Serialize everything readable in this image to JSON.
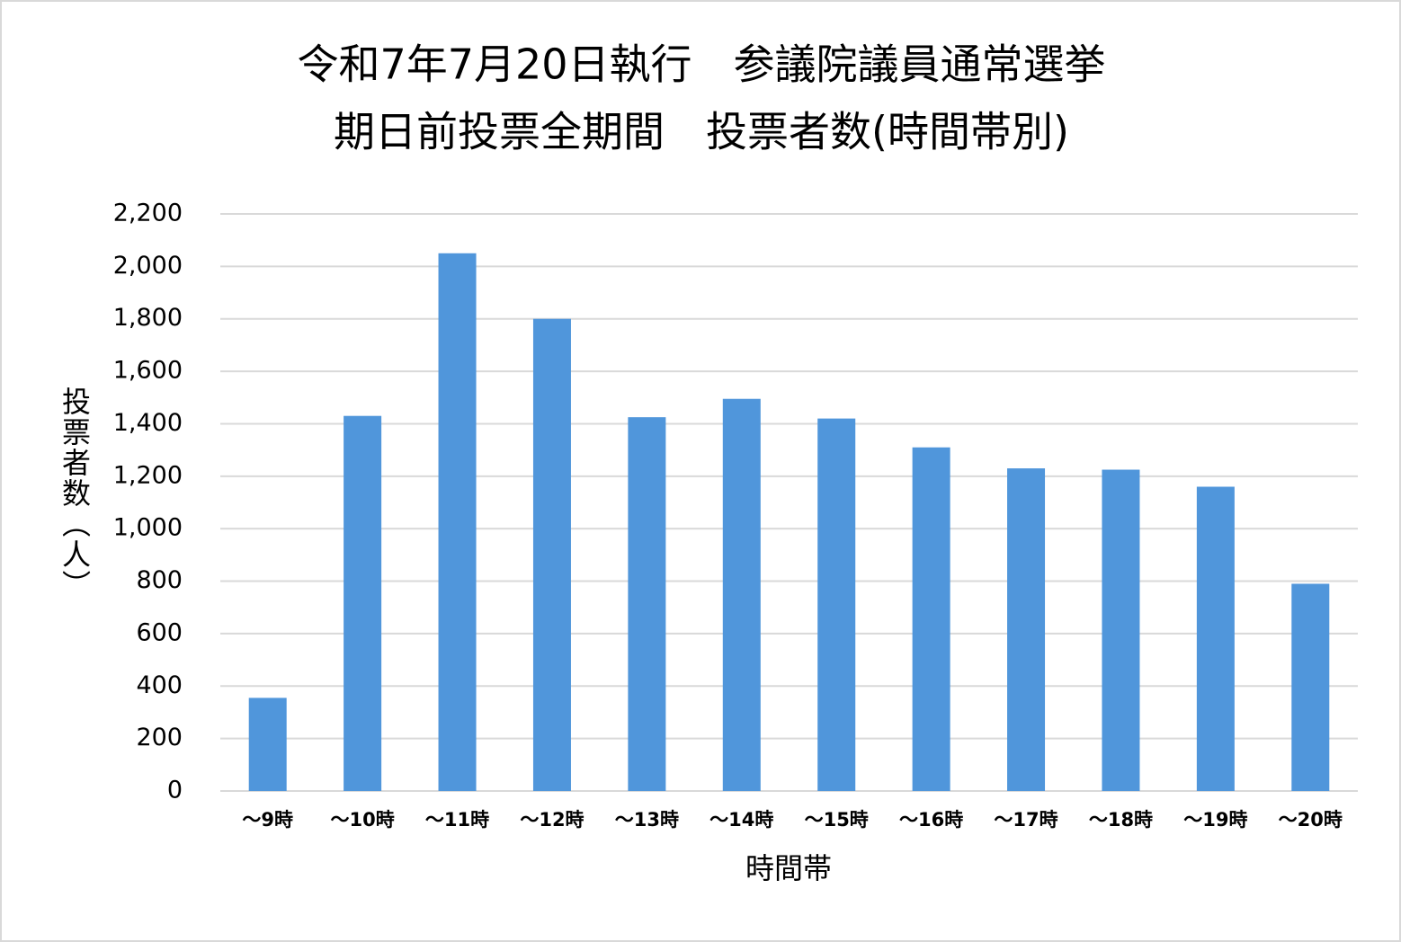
{
  "chart_data": {
    "type": "bar",
    "title": [
      "令和7年7月20日執行　参議院議員通常選挙",
      "期日前投票全期間　投票者数(時間帯別)"
    ],
    "x_label": "時間帯",
    "y_label": "投票者数（人）",
    "categories": [
      "～9時",
      "～10時",
      "～11時",
      "～12時",
      "～13時",
      "～14時",
      "～15時",
      "～16時",
      "～17時",
      "～18時",
      "～19時",
      "～20時"
    ],
    "values": [
      355,
      1430,
      2050,
      1800,
      1425,
      1495,
      1420,
      1310,
      1230,
      1225,
      1160,
      790
    ],
    "color": "#5096db",
    "ylim": [
      0,
      2200
    ],
    "yticks": [
      0,
      200,
      400,
      600,
      800,
      {
        "value": 1000,
        "label": "1,000"
      },
      {
        "value": 1200,
        "label": "1,200"
      },
      {
        "value": 1400,
        "label": "1,400"
      },
      {
        "value": 1600,
        "label": "1,600"
      },
      {
        "value": 1800,
        "label": "1,800"
      },
      {
        "value": 2000,
        "label": "2,000"
      },
      {
        "value": 2200,
        "label": "2,200"
      }
    ],
    "grid": true
  }
}
